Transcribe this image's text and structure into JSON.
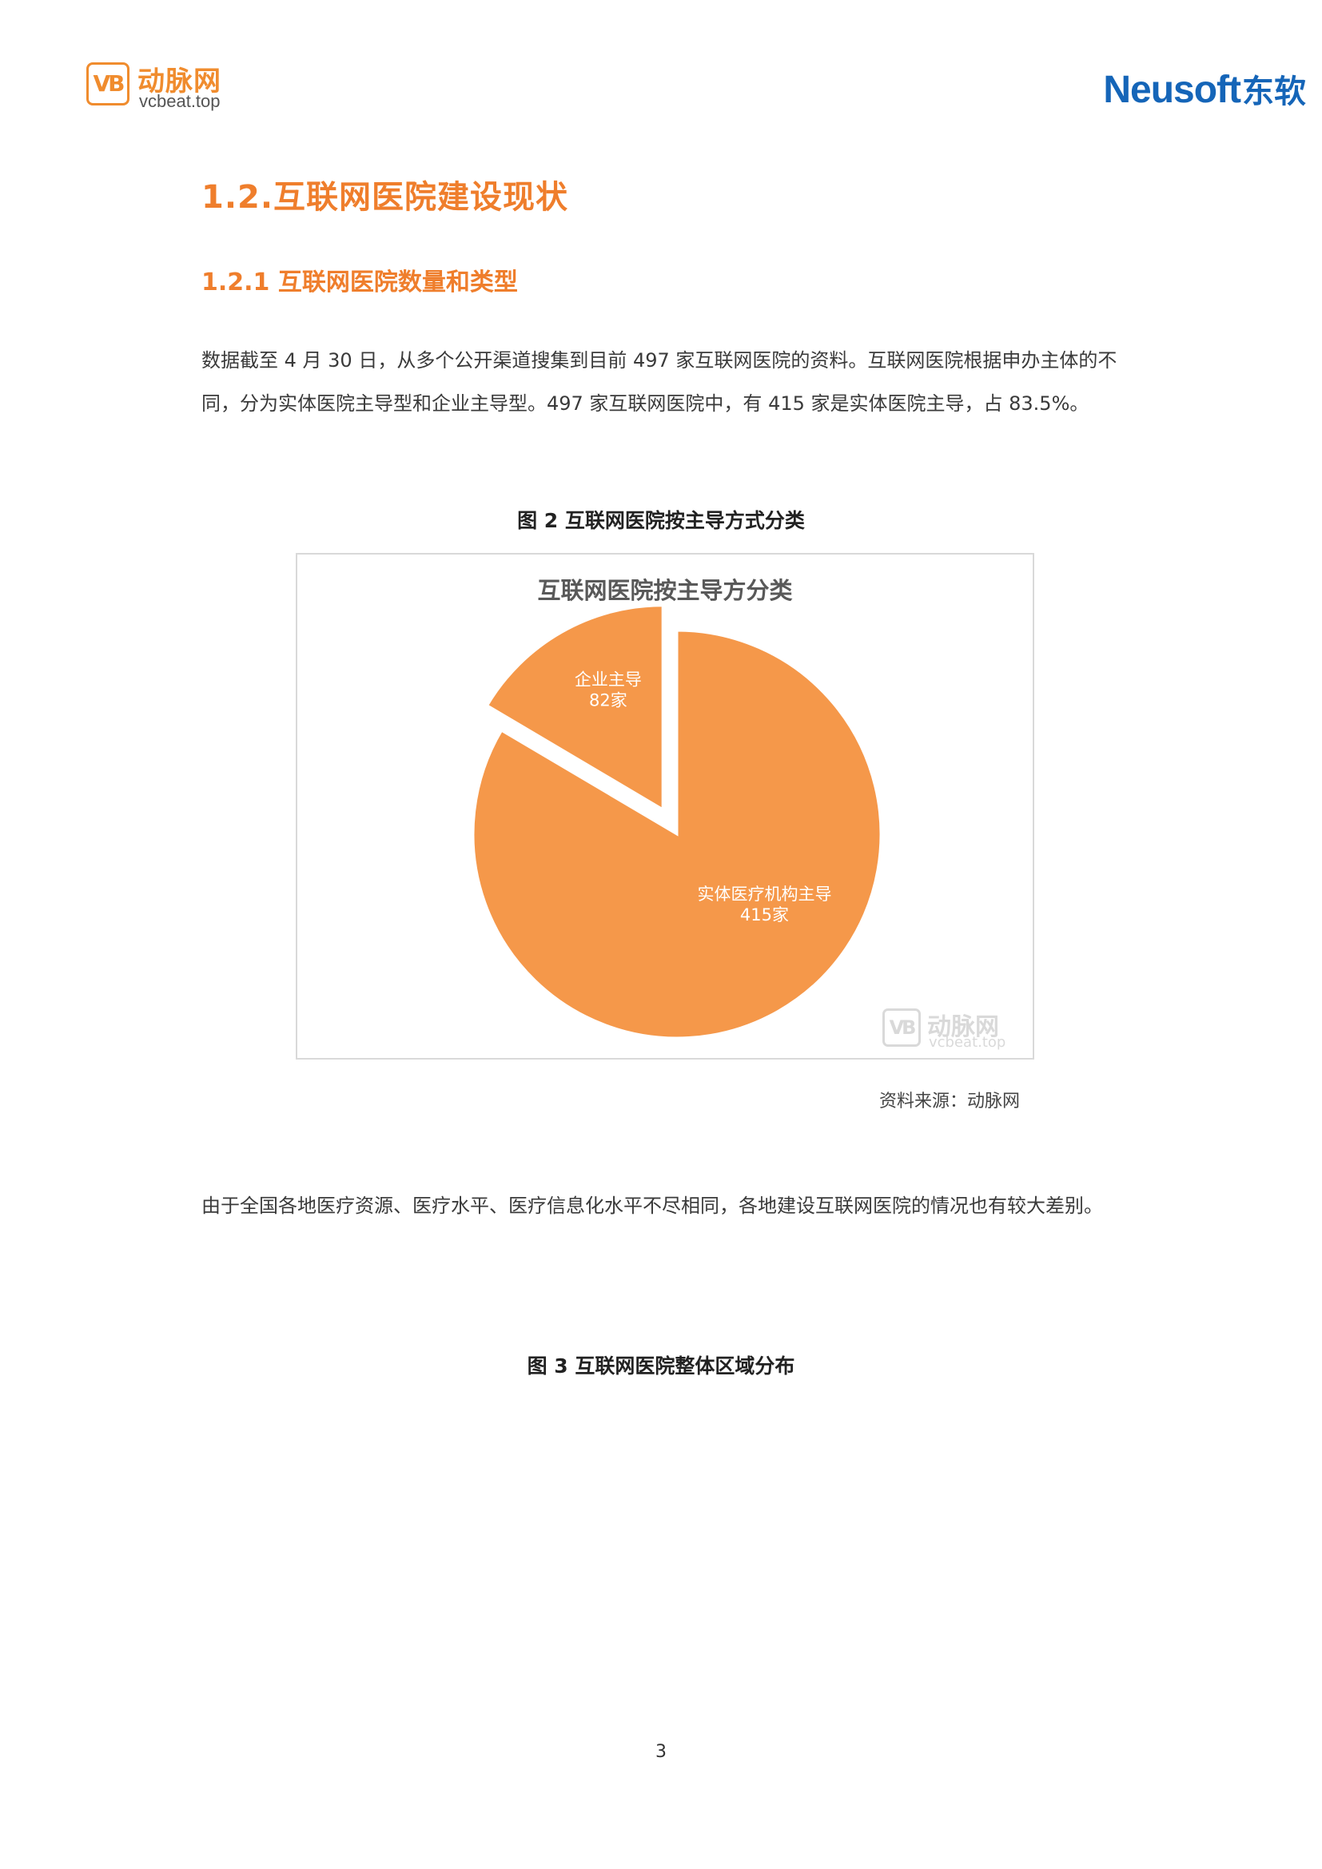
{
  "header": {
    "left_logo_mark": "VB",
    "left_logo_cn": "动脉网",
    "left_logo_en": "vcbeat.top",
    "right_logo_en": "Neusoft",
    "right_logo_cn": "东软"
  },
  "section": {
    "h1": "1.2.互联网医院建设现状",
    "h2": "1.2.1 互联网医院数量和类型",
    "para1": "数据截至 4 月 30 日，从多个公开渠道搜集到目前 497 家互联网医院的资料。互联网医院根据申办主体的不同，分为实体医院主导型和企业主导型。497 家互联网医院中，有 415 家是实体医院主导，占 83.5%。",
    "figure2_caption": "图 2  互联网医院按主导方式分类",
    "figure2_source": "资料来源：动脉网",
    "para2": "由于全国各地医疗资源、医疗水平、医疗信息化水平不尽相同，各地建设互联网医院的情况也有较大差别。",
    "figure3_caption": "图 3 互联网医院整体区域分布"
  },
  "chart_data": {
    "type": "pie",
    "title": "互联网医院按主导方分类",
    "slices": [
      {
        "label": "实体医疗机构主导",
        "value": 415,
        "value_label": "415家",
        "color": "#f5984a",
        "exploded": false
      },
      {
        "label": "企业主导",
        "value": 82,
        "value_label": "82家",
        "color": "#f5984a",
        "exploded": true
      }
    ],
    "watermark_cn": "动脉网",
    "watermark_en": "vcbeat.top",
    "watermark_mark": "VB"
  },
  "page": {
    "number": "3"
  }
}
